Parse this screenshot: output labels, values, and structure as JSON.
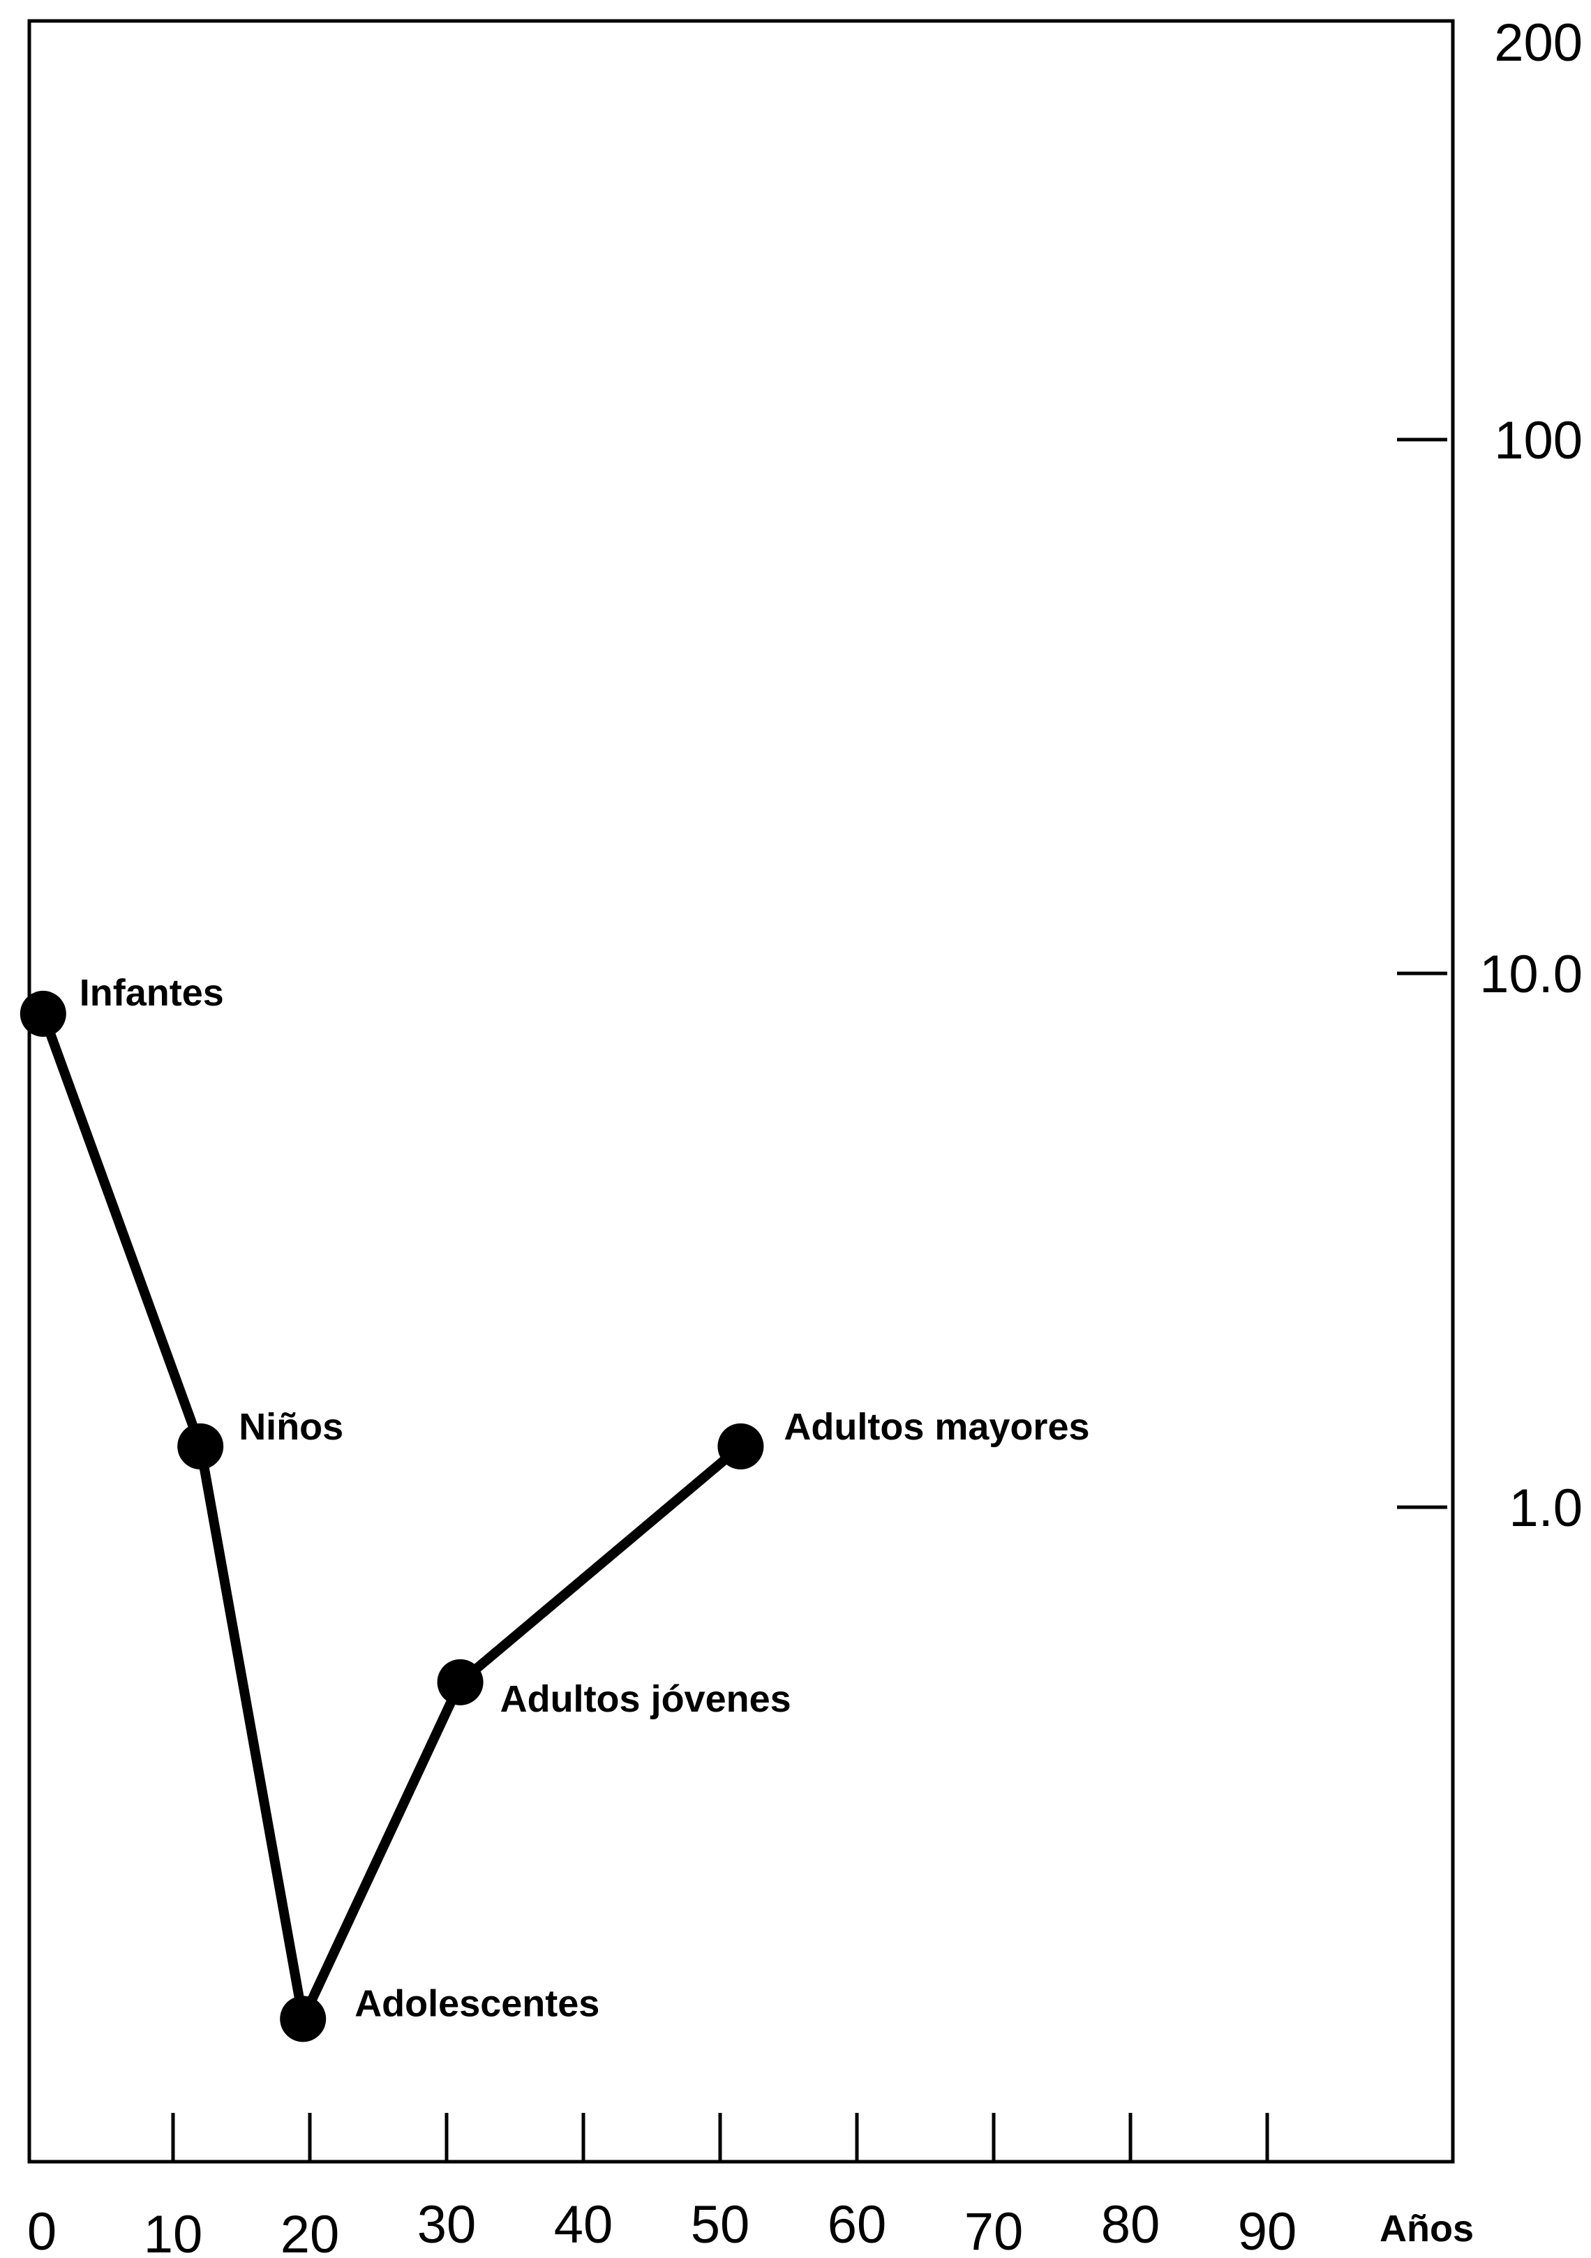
{
  "chart_data": {
    "type": "line",
    "title": "",
    "xlabel": "Años",
    "ylabel": "",
    "y_scale": "log",
    "x_ticks": [
      "0",
      "10",
      "20",
      "30",
      "40",
      "50",
      "60",
      "70",
      "80",
      "90"
    ],
    "y_ticks": [
      "1.0",
      "10.0",
      "100",
      "200"
    ],
    "xlim": [
      0,
      100
    ],
    "ylim": [
      0.09,
      200
    ],
    "grid": false,
    "line_color": "#000000",
    "series": [
      {
        "points": [
          {
            "label": "Infantes",
            "x": 0.5,
            "y": 8.4
          },
          {
            "label": "Niños",
            "x": 12,
            "y": 1.3
          },
          {
            "label": "Adolescentes",
            "x": 19.5,
            "y": 0.11
          },
          {
            "label": "Adultos jóvenes",
            "x": 31,
            "y": 0.47
          },
          {
            "label": "Adultos mayores",
            "x": 51.5,
            "y": 1.3
          }
        ]
      }
    ]
  }
}
